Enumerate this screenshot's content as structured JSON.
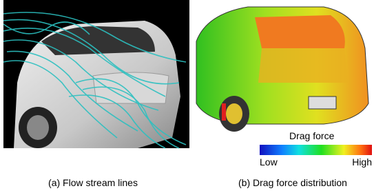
{
  "panels": [
    {
      "caption": "(a) Flow stream lines"
    },
    {
      "caption": "(b) Drag force distribution",
      "colorbar": {
        "title": "Drag force",
        "low": "Low",
        "high": "High"
      }
    }
  ]
}
